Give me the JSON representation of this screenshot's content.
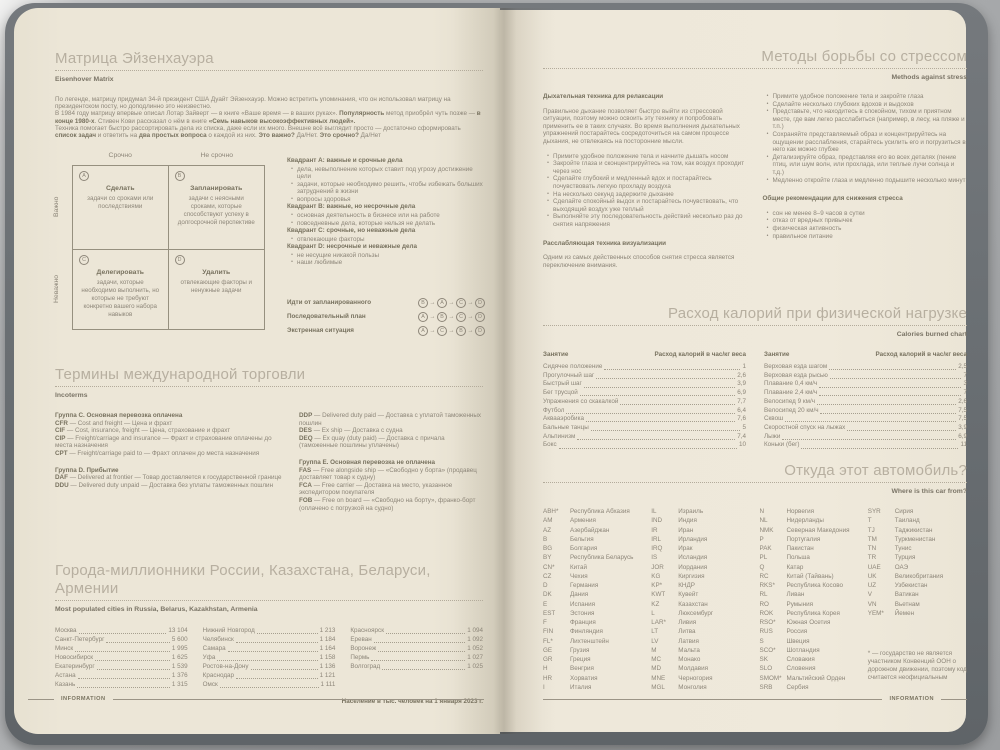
{
  "footer": {
    "label": "INFORMATION"
  },
  "eisenhower": {
    "title": "Матрица Эйзенхауэра",
    "subtitle": "Eisenhover Matrix",
    "intro": [
      [
        {
          "t": "По легенде, матрицу придумал 34-й президент США Дуайт Эйзенхауэр. Можно встретить упоминания, что он использовал матрицу на президентском посту, но доподлинно это неизвестно.",
          "b": false
        }
      ],
      [
        {
          "t": "В 1984 году матрицу впервые описал Лотар Зайверт — в книге «Ваше время — в ваших руках». ",
          "b": false
        },
        {
          "t": "Популярность",
          "b": true
        },
        {
          "t": " метод приобрёл чуть позже — ",
          "b": false
        },
        {
          "t": "в конце 1980-х",
          "b": true
        },
        {
          "t": ". Стивен Кови рассказал о нём в книге ",
          "b": false
        },
        {
          "t": "«Семь навыков высокоэффективных людей».",
          "b": true
        }
      ],
      [
        {
          "t": "Техника помогает быстро рассортировать дела из списка, даже если их много. Внешне всё выглядит просто — достаточно сформировать ",
          "b": false
        },
        {
          "t": "список задач",
          "b": true
        },
        {
          "t": " и ответить на ",
          "b": false
        },
        {
          "t": "два простых вопроса",
          "b": true
        },
        {
          "t": " о каждой из них. ",
          "b": false
        },
        {
          "t": "Это важно?",
          "b": true
        },
        {
          "t": " Да/Нет. ",
          "b": false
        },
        {
          "t": "Это срочно?",
          "b": true
        },
        {
          "t": " Да/Нет",
          "b": false
        }
      ]
    ],
    "axis": {
      "col1": "Срочно",
      "col2": "Не срочно",
      "row1": "Важно",
      "row2": "Неважно"
    },
    "cells": [
      {
        "letter": "A",
        "title": "Сделать",
        "desc": "задачи со сроками или последствиями"
      },
      {
        "letter": "B",
        "title": "Запланировать",
        "desc": "задачи с неясными сроками, которые способствуют успеху в долгосрочной перспективе"
      },
      {
        "letter": "C",
        "title": "Делегировать",
        "desc": "задачи, которые необходимо выполнить, но которые не требуют конкретно вашего набора навыков"
      },
      {
        "letter": "D",
        "title": "Удалить",
        "desc": "отвлекающие факторы и ненужные задачи"
      }
    ],
    "details": [
      {
        "heading": "Квадрант A: важные и срочные дела",
        "bullets": [
          "дела, невыполнение которых ставит под угрозу достижение цели",
          "задачи, которые необходимо решить, чтобы избежать больших затруднений в жизни",
          "вопросы здоровья"
        ]
      },
      {
        "heading": "Квадрант B: важные, но несрочные дела",
        "bullets": [
          "основная деятельность в бизнесе или на работе",
          "повседневные дела, которые нельзя не делать"
        ]
      },
      {
        "heading": "Квадрант C: срочные, но неважные дела",
        "bullets": [
          "отвлекающие факторы"
        ]
      },
      {
        "heading": "Квадрант D: несрочные и неважные дела",
        "bullets": [
          "не несущие никакой пользы",
          "наши любимые"
        ]
      }
    ],
    "sequences": [
      {
        "label": "Идти от запланированного",
        "order": [
          "B",
          "A",
          "C",
          "D"
        ]
      },
      {
        "label": "Последовательный план",
        "order": [
          "A",
          "B",
          "C",
          "D"
        ]
      },
      {
        "label": "Экстренная ситуация",
        "order": [
          "A",
          "C",
          "B",
          "D"
        ]
      }
    ]
  },
  "incoterms": {
    "title": "Термины международной торговли",
    "subtitle": "Incoterms",
    "left": [
      {
        "heading": "Группа C. Основная перевозка оплачена",
        "items": [
          {
            "c": "CFR",
            "en": "Cost and freight",
            "ru": "Цена и фрахт"
          },
          {
            "c": "CIF",
            "en": "Cost, insurance, freight",
            "ru": "Цена, страхование и фрахт"
          },
          {
            "c": "CIP",
            "en": "Freight/carriage and insurance",
            "ru": "Фрахт и страхование оплачены до места назначения"
          },
          {
            "c": "CPT",
            "en": "Freight/carriage paid to",
            "ru": "Фрахт оплачен до места назначения"
          }
        ]
      },
      {
        "heading": "Группа D. Прибытие",
        "items": [
          {
            "c": "DAF",
            "en": "Delivered at frontier",
            "ru": "Товар доставляется к государственной границе"
          },
          {
            "c": "DDU",
            "en": "Delivered duty unpaid",
            "ru": "Доставка без уплаты таможенных пошлин"
          }
        ]
      }
    ],
    "right": [
      {
        "heading": "",
        "items": [
          {
            "c": "DDP",
            "en": "Delivered duty paid",
            "ru": "Доставка с уплатой таможенных пошлин"
          },
          {
            "c": "DES",
            "en": "Ex ship",
            "ru": "Доставка с судна"
          },
          {
            "c": "DEQ",
            "en": "Ex quay (duty paid)",
            "ru": "Доставка с причала (таможенные пошлины уплачены)"
          }
        ]
      },
      {
        "heading": "Группа E. Основная перевозка не оплачена",
        "items": [
          {
            "c": "FAS",
            "en": "Free alongside ship",
            "ru": "«Свободно у борта» (продавец доставляет товар к судну)"
          },
          {
            "c": "FCA",
            "en": "Free carrier",
            "ru": "Доставка на место, указанное экспедитором покупателя"
          },
          {
            "c": "FOB",
            "en": "Free on board",
            "ru": "«Свободно на борту», франко-борт (оплачено с погрузкой на судно)"
          }
        ]
      }
    ]
  },
  "cities": {
    "title": "Города-миллионники России, Казахстана, Беларуси, Армении",
    "subtitle": "Most populated cities in Russia, Belarus, Kazakhstan, Armenia",
    "note": "Население в тыс. человек на 1 января 2023 г.",
    "columns": [
      [
        {
          "n": "Москва",
          "v": "13 104"
        },
        {
          "n": "Санкт-Петербург",
          "v": "5 600"
        },
        {
          "n": "Минск",
          "v": "1 995"
        },
        {
          "n": "Новосибирск",
          "v": "1 625"
        },
        {
          "n": "Екатеринбург",
          "v": "1 539"
        },
        {
          "n": "Астана",
          "v": "1 376"
        },
        {
          "n": "Казань",
          "v": "1 315"
        }
      ],
      [
        {
          "n": "Нижний Новгород",
          "v": "1 213"
        },
        {
          "n": "Челябинск",
          "v": "1 184"
        },
        {
          "n": "Самара",
          "v": "1 164"
        },
        {
          "n": "Уфа",
          "v": "1 158"
        },
        {
          "n": "Ростов-на-Дону",
          "v": "1 136"
        },
        {
          "n": "Краснодар",
          "v": "1 121"
        },
        {
          "n": "Омск",
          "v": "1 111"
        }
      ],
      [
        {
          "n": "Красноярск",
          "v": "1 094"
        },
        {
          "n": "Ереван",
          "v": "1 092"
        },
        {
          "n": "Воронеж",
          "v": "1 052"
        },
        {
          "n": "Пермь",
          "v": "1 027"
        },
        {
          "n": "Волгоград",
          "v": "1 025"
        }
      ]
    ]
  },
  "stress": {
    "title": "Методы борьбы со стрессом",
    "subtitle": "Methods against stress",
    "left": {
      "h1": "Дыхательная техника для релаксации",
      "p1": "Правильное дыхание позволяет быстро выйти из стрессовой ситуации, поэтому можно освоить эту технику и попробовать применить ее в таких случаях. Во время выполнения дыхательных упражнений постарайтесь сосредоточиться на самом процессе дыхания, не отвлекаясь на посторонние мысли.",
      "bullets": [
        "Примите удобное положение тела и начните дышать носом",
        "Закройте глаза и сконцентрируйтесь на том, как воздух проходит через нос",
        "Сделайте глубокий и медленный вдох и постарайтесь почувствовать легкую прохладу воздуха",
        "На несколько секунд задержите дыхание",
        "Сделайте спокойный выдох и постарайтесь почувствовать, что выходящий воздух уже теплый",
        "Выполняйте эту последовательность действий несколько раз до снятия напряжения"
      ],
      "h2": "Расслабляющая техника визуализации",
      "p2": "Одним из самых действенных способов снятия стресса является переключение внимания."
    },
    "right": {
      "bullets": [
        "Примите удобное положение тела и закройте глаза",
        "Сделайте несколько глубоких вдохов и выдохов",
        "Представьте, что находитесь в спокойном, тихом и приятном месте, где вам легко расслабиться (например, в лесу, на пляже и т.п.)",
        "Сохраняйте представляемый образ и концентрируйтесь на ощущении расслабления, старайтесь усилить его и погрузиться в него как можно глубже",
        "Детализируйте образ, представляя его во всех деталях (пение птиц, или шум волн, или прохлада, или теплые лучи солнца и т.д.)",
        "Медленно откройте глаза и медленно подышите несколько минут"
      ],
      "h": "Общие рекомендации для снижения стресса",
      "bullets2": [
        "сон не менее 8–9 часов в сутки",
        "отказ от вредных привычек",
        "физическая активность",
        "правильное питание"
      ]
    }
  },
  "calories": {
    "title": "Расход калорий при физической нагрузке",
    "subtitle": "Calories burned chart",
    "col_headers": {
      "activity": "Занятие",
      "rate": "Расход калорий в час/кг веса"
    },
    "columns": [
      [
        {
          "n": "Сидячее положение",
          "v": "1"
        },
        {
          "n": "Прогулочный шаг",
          "v": "2,6"
        },
        {
          "n": "Быстрый шаг",
          "v": "3,9"
        },
        {
          "n": "Бег трусцой",
          "v": "6,9"
        },
        {
          "n": "Упражнения со скакалкой",
          "v": "7,7"
        },
        {
          "n": "Футбол",
          "v": "6,4"
        },
        {
          "n": "Аквааэробика",
          "v": "7,6"
        },
        {
          "n": "Бальные танцы",
          "v": "5"
        },
        {
          "n": "Альпинизм",
          "v": "7,4"
        },
        {
          "n": "Бокс",
          "v": "10"
        }
      ],
      [
        {
          "n": "Верховая езда шагом",
          "v": "2,5"
        },
        {
          "n": "Верховая езда рысью",
          "v": "7"
        },
        {
          "n": "Плавание 0,4 км/ч",
          "v": "3"
        },
        {
          "n": "Плавание 2,4 км/ч",
          "v": "7"
        },
        {
          "n": "Велосипед 9 км/ч",
          "v": "2,6"
        },
        {
          "n": "Велосипед 20 км/ч",
          "v": "7,5"
        },
        {
          "n": "Сквош",
          "v": "7,5"
        },
        {
          "n": "Скоростной спуск на лыжах",
          "v": "3,9"
        },
        {
          "n": "Лыжи",
          "v": "6,9"
        },
        {
          "n": "Коньки (бег)",
          "v": "11"
        }
      ]
    ]
  },
  "cars": {
    "title": "Откуда этот автомобиль?",
    "subtitle": "Where is this car from?",
    "footnote": "* — государство не является участником Конвенций ООН о дорожном движении, поэтому код считается неофициальным",
    "columns": [
      [
        {
          "c": "ABH*",
          "n": "Республика Абхазия"
        },
        {
          "c": "AM",
          "n": "Армения"
        },
        {
          "c": "AZ",
          "n": "Азербайджан"
        },
        {
          "c": "B",
          "n": "Бельгия"
        },
        {
          "c": "BG",
          "n": "Болгария"
        },
        {
          "c": "BY",
          "n": "Республика Беларусь"
        },
        {
          "c": "CN*",
          "n": "Китай"
        },
        {
          "c": "CZ",
          "n": "Чехия"
        },
        {
          "c": "D",
          "n": "Германия"
        },
        {
          "c": "DK",
          "n": "Дания"
        },
        {
          "c": "E",
          "n": "Испания"
        },
        {
          "c": "EST",
          "n": "Эстония"
        },
        {
          "c": "F",
          "n": "Франция"
        },
        {
          "c": "FIN",
          "n": "Финляндия"
        },
        {
          "c": "FL*",
          "n": "Лихтенштейн"
        },
        {
          "c": "GE",
          "n": "Грузия"
        },
        {
          "c": "GR",
          "n": "Греция"
        },
        {
          "c": "H",
          "n": "Венгрия"
        },
        {
          "c": "HR",
          "n": "Хорватия"
        },
        {
          "c": "I",
          "n": "Италия"
        }
      ],
      [
        {
          "c": "IL",
          "n": "Израиль"
        },
        {
          "c": "IND",
          "n": "Индия"
        },
        {
          "c": "IR",
          "n": "Иран"
        },
        {
          "c": "IRL",
          "n": "Ирландия"
        },
        {
          "c": "IRQ",
          "n": "Ирак"
        },
        {
          "c": "IS",
          "n": "Исландия"
        },
        {
          "c": "JOR",
          "n": "Иордания"
        },
        {
          "c": "KG",
          "n": "Киргизия"
        },
        {
          "c": "KP*",
          "n": "КНДР"
        },
        {
          "c": "KWT",
          "n": "Кувейт"
        },
        {
          "c": "KZ",
          "n": "Казахстан"
        },
        {
          "c": "L",
          "n": "Люксембург"
        },
        {
          "c": "LAR*",
          "n": "Ливия"
        },
        {
          "c": "LT",
          "n": "Литва"
        },
        {
          "c": "LV",
          "n": "Латвия"
        },
        {
          "c": "M",
          "n": "Мальта"
        },
        {
          "c": "MC",
          "n": "Монако"
        },
        {
          "c": "MD",
          "n": "Молдавия"
        },
        {
          "c": "MNE",
          "n": "Черногория"
        },
        {
          "c": "MGL",
          "n": "Монголия"
        }
      ],
      [
        {
          "c": "N",
          "n": "Норвегия"
        },
        {
          "c": "NL",
          "n": "Нидерланды"
        },
        {
          "c": "NMK",
          "n": "Северная Македония"
        },
        {
          "c": "P",
          "n": "Португалия"
        },
        {
          "c": "PAK",
          "n": "Пакистан"
        },
        {
          "c": "PL",
          "n": "Польша"
        },
        {
          "c": "Q",
          "n": "Катар"
        },
        {
          "c": "RC",
          "n": "Китай (Тайвань)"
        },
        {
          "c": "RKS*",
          "n": "Республика Косово"
        },
        {
          "c": "RL",
          "n": "Ливан"
        },
        {
          "c": "RO",
          "n": "Румыния"
        },
        {
          "c": "ROK",
          "n": "Республика Корея"
        },
        {
          "c": "RSO*",
          "n": "Южная Осетия"
        },
        {
          "c": "RUS",
          "n": "Россия"
        },
        {
          "c": "S",
          "n": "Швеция"
        },
        {
          "c": "SCO*",
          "n": "Шотландия"
        },
        {
          "c": "SK",
          "n": "Словакия"
        },
        {
          "c": "SLO",
          "n": "Словения"
        },
        {
          "c": "SMOM*",
          "n": "Мальтийский Орден"
        },
        {
          "c": "SRB",
          "n": "Сербия"
        }
      ],
      [
        {
          "c": "SYR",
          "n": "Сирия"
        },
        {
          "c": "T",
          "n": "Таиланд"
        },
        {
          "c": "TJ",
          "n": "Таджикистан"
        },
        {
          "c": "TM",
          "n": "Туркменистан"
        },
        {
          "c": "TN",
          "n": "Тунис"
        },
        {
          "c": "TR",
          "n": "Турция"
        },
        {
          "c": "UAE",
          "n": "ОАЭ"
        },
        {
          "c": "UK",
          "n": "Великобритания"
        },
        {
          "c": "UZ",
          "n": "Узбекистан"
        },
        {
          "c": "V",
          "n": "Ватикан"
        },
        {
          "c": "VN",
          "n": "Вьетнам"
        },
        {
          "c": "YEM*",
          "n": "Йемен"
        }
      ]
    ]
  }
}
